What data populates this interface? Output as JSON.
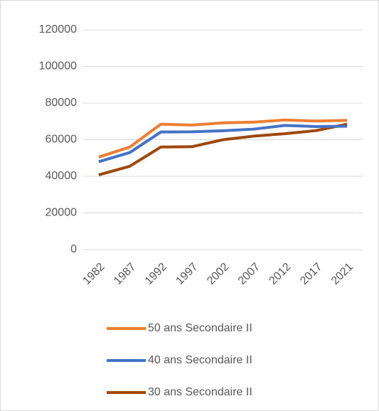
{
  "chart_data": {
    "type": "line",
    "categories": [
      "1982",
      "1987",
      "1992",
      "1997",
      "2002",
      "2007",
      "2012",
      "2017",
      "2021"
    ],
    "series": [
      {
        "name": "50 ans Secondaire II",
        "color": "#ED7D31",
        "values": [
          50500,
          56000,
          68500,
          68000,
          69200,
          69600,
          70800,
          70200,
          70600
        ]
      },
      {
        "name": "40 ans Secondaire II",
        "color": "#4472C4",
        "values": [
          48000,
          53000,
          64200,
          64300,
          64900,
          65800,
          67800,
          67200,
          67400
        ]
      },
      {
        "name": "30 ans Secondaire II",
        "color": "#9E480E",
        "values": [
          40800,
          45500,
          56000,
          56200,
          60000,
          62000,
          63300,
          65000,
          68500
        ]
      }
    ],
    "ylim": [
      0,
      120000
    ],
    "yticks": [
      0,
      20000,
      40000,
      60000,
      80000,
      100000,
      120000
    ],
    "grid": true,
    "legend": "bottom"
  }
}
